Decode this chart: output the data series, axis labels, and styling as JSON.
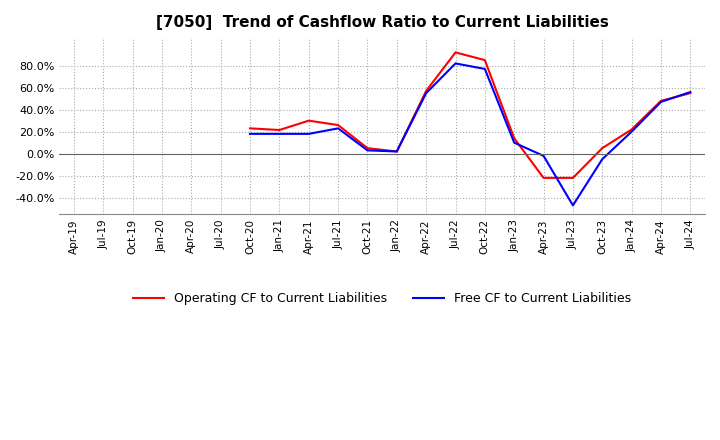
{
  "title": "[7050]  Trend of Cashflow Ratio to Current Liabilities",
  "title_fontsize": 11,
  "background_color": "#ffffff",
  "grid_color": "#aaaaaa",
  "x_labels": [
    "Apr-19",
    "Jul-19",
    "Oct-19",
    "Jan-20",
    "Apr-20",
    "Jul-20",
    "Oct-20",
    "Jan-21",
    "Apr-21",
    "Jul-21",
    "Oct-21",
    "Jan-22",
    "Apr-22",
    "Jul-22",
    "Oct-22",
    "Jan-23",
    "Apr-23",
    "Jul-23",
    "Oct-23",
    "Jan-24",
    "Apr-24",
    "Jul-24"
  ],
  "operating_cf": [
    null,
    null,
    null,
    null,
    null,
    null,
    23.0,
    21.5,
    30.0,
    26.0,
    5.0,
    2.0,
    57.0,
    92.0,
    85.0,
    14.0,
    -22.0,
    -22.0,
    5.0,
    22.0,
    48.0,
    55.0
  ],
  "free_cf": [
    null,
    null,
    null,
    null,
    null,
    null,
    18.0,
    18.0,
    18.0,
    23.0,
    3.0,
    2.0,
    55.0,
    82.0,
    77.0,
    10.0,
    -2.0,
    -47.0,
    -5.0,
    20.0,
    47.0,
    56.0
  ],
  "operating_color": "#ff0000",
  "free_color": "#0000ff",
  "ylim": [
    -55,
    105
  ],
  "yticks": [
    -40.0,
    -20.0,
    0.0,
    20.0,
    40.0,
    60.0,
    80.0
  ],
  "legend_labels": [
    "Operating CF to Current Liabilities",
    "Free CF to Current Liabilities"
  ]
}
